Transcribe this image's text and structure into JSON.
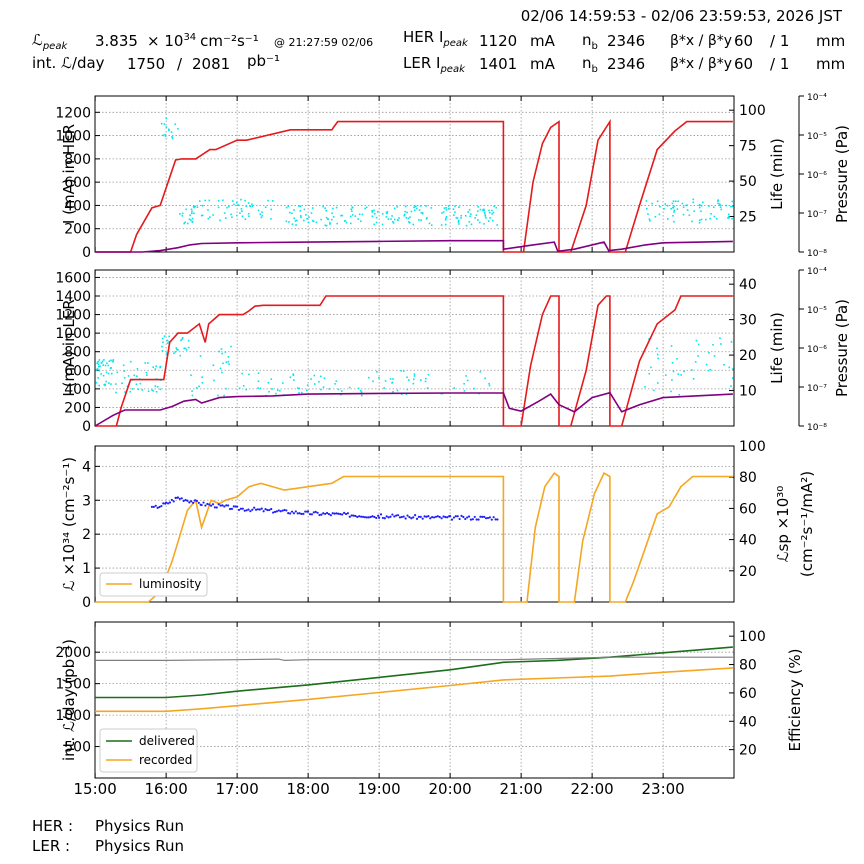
{
  "header": {
    "time_range": "02/06 14:59:53 - 02/06 23:59:53, 2026 JST",
    "lpeak_label": "ℒ",
    "lpeak_sub": "peak",
    "lpeak_value": "3.835",
    "lpeak_unit_pre": "× 10",
    "lpeak_exp": "34",
    "lpeak_unit_post": "cm⁻²s⁻¹",
    "lpeak_at": "@ 21:27:59 02/06",
    "intl_label": "int. ℒ/day",
    "intl_value": "1750",
    "intl_slash": "/",
    "intl_total": "2081",
    "intl_unit": "pb⁻¹",
    "her_label": "HER I",
    "ler_label": "LER I",
    "i_sub": "peak",
    "her_current": "1120",
    "ler_current": "1401",
    "current_unit": "mA",
    "nb_label": "n",
    "nb_sub": "b",
    "her_nb": "2346",
    "ler_nb": "2346",
    "beta_label": "β*x / β*y",
    "her_beta_x": "60",
    "her_beta_y": "/ 1",
    "ler_beta_x": "60",
    "ler_beta_y": "/ 1",
    "beta_unit": "mm"
  },
  "footer": {
    "her_label": "HER :",
    "her_state": "Physics Run",
    "ler_label": "LER :",
    "ler_state": "Physics Run"
  },
  "colors": {
    "current": "#e41a1c",
    "life": "#800080",
    "pressure": "#00e5ee",
    "luminosity": "#f5a623",
    "specific": "#1f1fff",
    "delivered": "#1b6e1b",
    "recorded": "#f5a623",
    "efficiency": "#808080",
    "grid": "#999999"
  },
  "chart_data": [
    {
      "type": "line",
      "panel": "her",
      "ylabel": "I (mA) in HER",
      "ylabel_right": "Life (min)",
      "ylabel_pressure": "Pressure (Pa)",
      "ylim": [
        0,
        1340
      ],
      "yticks": [
        0,
        200,
        400,
        600,
        800,
        1000,
        1200
      ],
      "ylim_right": [
        0,
        110
      ],
      "yticks_right": [
        25,
        50,
        75,
        100
      ],
      "pressure_log_range": [
        -8,
        -4
      ],
      "pressure_ticks": [
        "10⁻⁸",
        "10⁻⁷",
        "10⁻⁶",
        "10⁻⁵",
        "10⁻⁴"
      ],
      "series": [
        {
          "role": "current",
          "x": [
            "15:00",
            "15:30",
            "15:35",
            "15:48",
            "15:55",
            "16:08",
            "16:13",
            "16:25",
            "16:37",
            "16:42",
            "17:00",
            "17:08",
            "17:45",
            "17:52",
            "18:20",
            "18:25",
            "20:40",
            "20:45",
            "20:45",
            "21:02",
            "21:10",
            "21:18",
            "21:25",
            "21:32",
            "21:32",
            "21:42",
            "21:55",
            "22:05",
            "22:15",
            "22:15",
            "22:28",
            "22:40",
            "22:55",
            "23:10",
            "23:20",
            "23:59"
          ],
          "values": [
            0,
            0,
            150,
            380,
            400,
            790,
            800,
            800,
            880,
            880,
            960,
            960,
            1050,
            1050,
            1050,
            1120,
            1120,
            1120,
            0,
            0,
            600,
            930,
            1070,
            1120,
            0,
            0,
            400,
            960,
            1120,
            0,
            0,
            400,
            880,
            1040,
            1120,
            1120
          ]
        },
        {
          "role": "life",
          "x": [
            "15:00",
            "15:40",
            "15:55",
            "16:10",
            "16:20",
            "16:30",
            "17:00",
            "18:00",
            "19:00",
            "20:00",
            "20:45",
            "20:45",
            "21:10",
            "21:28",
            "21:31",
            "21:45",
            "22:10",
            "22:14",
            "22:25",
            "22:45",
            "23:00",
            "23:59"
          ],
          "values": [
            0,
            0,
            1,
            3,
            5,
            6,
            6.5,
            7,
            7.5,
            8,
            8,
            2,
            5,
            7,
            0.5,
            2,
            7,
            1,
            2,
            5,
            6.5,
            7.5
          ]
        }
      ]
    },
    {
      "type": "line",
      "panel": "ler",
      "ylabel": "I (mA) in LER",
      "ylabel_right": "Life (min)",
      "ylabel_pressure": "Pressure (Pa)",
      "ylim": [
        0,
        1680
      ],
      "yticks": [
        0,
        200,
        400,
        600,
        800,
        1000,
        1200,
        1400,
        1600
      ],
      "ylim_right": [
        0,
        44
      ],
      "yticks_right": [
        10,
        20,
        30,
        40
      ],
      "pressure_log_range": [
        -8,
        -4
      ],
      "pressure_ticks": [
        "10⁻⁸",
        "10⁻⁷",
        "10⁻⁶",
        "10⁻⁵",
        "10⁻⁴"
      ],
      "series": [
        {
          "role": "current",
          "x": [
            "15:00",
            "15:18",
            "15:22",
            "15:30",
            "15:58",
            "16:03",
            "16:10",
            "16:18",
            "16:28",
            "16:33",
            "16:36",
            "16:45",
            "17:05",
            "17:10",
            "17:15",
            "17:22",
            "17:30",
            "18:10",
            "18:15",
            "18:20",
            "20:40",
            "20:45",
            "20:45",
            "21:00",
            "21:08",
            "21:18",
            "21:25",
            "21:32",
            "21:32",
            "21:42",
            "21:55",
            "22:05",
            "22:12",
            "22:15",
            "22:15",
            "22:25",
            "22:40",
            "22:55",
            "23:10",
            "23:15",
            "23:59"
          ],
          "values": [
            0,
            0,
            200,
            500,
            500,
            900,
            1000,
            1000,
            1100,
            900,
            1100,
            1200,
            1200,
            1240,
            1290,
            1300,
            1300,
            1300,
            1400,
            1400,
            1400,
            1400,
            0,
            0,
            650,
            1200,
            1400,
            1400,
            0,
            0,
            600,
            1300,
            1400,
            1400,
            0,
            0,
            700,
            1100,
            1250,
            1400,
            1400
          ]
        },
        {
          "role": "life",
          "x": [
            "15:00",
            "15:15",
            "15:25",
            "15:55",
            "16:05",
            "16:15",
            "16:25",
            "16:30",
            "16:45",
            "17:00",
            "17:30",
            "18:00",
            "19:00",
            "20:00",
            "20:45",
            "20:50",
            "21:00",
            "21:15",
            "21:25",
            "21:32",
            "21:45",
            "22:00",
            "22:15",
            "22:25",
            "22:40",
            "23:00",
            "23:59"
          ],
          "values": [
            0,
            3,
            4.5,
            4.5,
            5.5,
            7,
            7.5,
            6.5,
            8,
            8.3,
            8.5,
            9,
            9.2,
            9.3,
            9.3,
            5,
            4.2,
            7,
            9,
            6,
            4,
            8,
            9.4,
            4,
            6,
            8,
            9
          ]
        }
      ]
    },
    {
      "type": "line",
      "panel": "luminosity",
      "ylabel": "ℒ ×10³⁴ (cm⁻²s⁻¹)",
      "ylabel_right": "ℒsp ×10³⁰",
      "ylabel_right2": "(cm⁻²s⁻¹/mA²)",
      "ylim": [
        0,
        4.6
      ],
      "yticks": [
        0,
        1,
        2,
        3,
        4
      ],
      "ylim_right": [
        0,
        100
      ],
      "yticks_right": [
        20,
        40,
        60,
        80,
        100
      ],
      "legend": "luminosity",
      "series": [
        {
          "role": "luminosity",
          "x": [
            "15:00",
            "15:45",
            "15:55",
            "16:05",
            "16:12",
            "16:18",
            "16:25",
            "16:30",
            "16:38",
            "16:45",
            "16:50",
            "17:00",
            "17:10",
            "17:20",
            "17:40",
            "18:00",
            "18:20",
            "18:30",
            "19:00",
            "20:00",
            "20:45",
            "20:45",
            "21:05",
            "21:12",
            "21:20",
            "21:28",
            "21:32",
            "21:32",
            "21:45",
            "21:52",
            "22:02",
            "22:10",
            "22:15",
            "22:15",
            "22:28",
            "22:35",
            "22:45",
            "22:55",
            "23:05",
            "23:15",
            "23:25",
            "23:59"
          ],
          "values": [
            0,
            0,
            0.3,
            1.2,
            2.0,
            2.7,
            3.0,
            2.2,
            3.0,
            2.9,
            3.0,
            3.1,
            3.4,
            3.5,
            3.3,
            3.4,
            3.5,
            3.7,
            3.7,
            3.7,
            3.7,
            0,
            0,
            2.2,
            3.4,
            3.8,
            3.7,
            0,
            0,
            1.8,
            3.2,
            3.8,
            3.7,
            0,
            0,
            0.6,
            1.6,
            2.6,
            2.8,
            3.4,
            3.7,
            3.7
          ]
        },
        {
          "role": "specific",
          "x": [
            "15:48",
            "16:00",
            "16:10",
            "16:30",
            "17:00",
            "18:00",
            "19:00",
            "20:00",
            "20:40"
          ],
          "values": [
            60,
            63,
            67,
            63,
            60,
            57,
            55,
            54,
            54
          ]
        }
      ]
    },
    {
      "type": "line",
      "panel": "integrated",
      "ylabel": "int. ℒ/day (pb⁻¹)",
      "ylabel_right": "Efficiency (%)",
      "ylim": [
        0,
        2480
      ],
      "yticks": [
        500,
        1000,
        1500,
        2000
      ],
      "ylim_right": [
        0,
        110
      ],
      "yticks_right": [
        20,
        40,
        60,
        80,
        100
      ],
      "xticks": [
        "15:00",
        "16:00",
        "17:00",
        "18:00",
        "19:00",
        "20:00",
        "21:00",
        "22:00",
        "23:00"
      ],
      "legend": [
        "delivered",
        "recorded"
      ],
      "series": [
        {
          "name": "delivered",
          "x": [
            "15:00",
            "16:00",
            "16:30",
            "17:00",
            "18:00",
            "19:00",
            "20:00",
            "20:45",
            "21:30",
            "22:15",
            "23:00",
            "23:59"
          ],
          "values": [
            1280,
            1280,
            1320,
            1380,
            1480,
            1600,
            1720,
            1840,
            1870,
            1920,
            1990,
            2081
          ]
        },
        {
          "name": "recorded",
          "x": [
            "15:00",
            "16:00",
            "16:30",
            "17:00",
            "18:00",
            "19:00",
            "20:00",
            "20:45",
            "21:30",
            "22:15",
            "23:00",
            "23:59"
          ],
          "values": [
            1060,
            1060,
            1100,
            1150,
            1250,
            1360,
            1470,
            1560,
            1590,
            1620,
            1680,
            1750
          ]
        },
        {
          "name": "efficiency",
          "x": [
            "15:00",
            "16:00",
            "17:00",
            "17:35",
            "17:40",
            "18:00",
            "19:00",
            "20:00",
            "20:45",
            "21:30",
            "22:15",
            "23:00",
            "23:59"
          ],
          "values": [
            1870,
            1870,
            1880,
            1890,
            1870,
            1880,
            1880,
            1880,
            1880,
            1900,
            1920,
            1920,
            1920
          ]
        }
      ]
    }
  ]
}
